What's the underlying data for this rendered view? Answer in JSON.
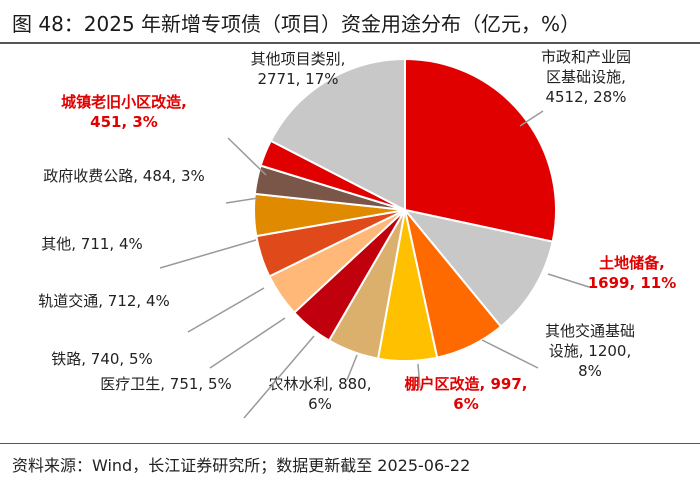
{
  "title": "图 48：2025 年新增专项债（项目）资金用途分布（亿元，%）",
  "source": "资料来源：Wind，长江证券研究所；数据更新截至 2025-06-22",
  "chart_data": {
    "type": "pie",
    "title": "图 48：2025 年新增专项债（项目）资金用途分布（亿元，%）",
    "unit": "亿元，%",
    "slices": [
      {
        "name": "市政和产业园区基础设施",
        "value": 4512,
        "pct": "28%",
        "color": "#e00000",
        "highlight": false,
        "label_lines": [
          "市政和产业园",
          "区基础设施,",
          "4512, 28%"
        ]
      },
      {
        "name": "土地储备",
        "value": 1699,
        "pct": "11%",
        "color": "#c8c8c8",
        "highlight": true,
        "label_lines": [
          "土地储备,",
          "1699, 11%"
        ]
      },
      {
        "name": "其他交通基础设施",
        "value": 1200,
        "pct": "8%",
        "color": "#ff6a00",
        "highlight": false,
        "label_lines": [
          "其他交通基础",
          "设施, 1200,",
          "8%"
        ]
      },
      {
        "name": "棚户区改造",
        "value": 997,
        "pct": "6%",
        "color": "#ffc000",
        "highlight": true,
        "label_lines": [
          "棚户区改造, 997,",
          "6%"
        ]
      },
      {
        "name": "农林水利",
        "value": 880,
        "pct": "6%",
        "color": "#dbb06c",
        "highlight": false,
        "label_lines": [
          "农林水利, 880,",
          "6%"
        ]
      },
      {
        "name": "医疗卫生",
        "value": 751,
        "pct": "5%",
        "color": "#c0000c",
        "highlight": false,
        "label_lines": [
          "医疗卫生, 751, 5%"
        ]
      },
      {
        "name": "铁路",
        "value": 740,
        "pct": "5%",
        "color": "#ffb878",
        "highlight": false,
        "label_lines": [
          "铁路, 740, 5%"
        ]
      },
      {
        "name": "轨道交通",
        "value": 712,
        "pct": "4%",
        "color": "#e04a1a",
        "highlight": false,
        "label_lines": [
          "轨道交通, 712, 4%"
        ]
      },
      {
        "name": "其他",
        "value": 711,
        "pct": "4%",
        "color": "#e08a00",
        "highlight": false,
        "label_lines": [
          "其他, 711, 4%"
        ]
      },
      {
        "name": "政府收费公路",
        "value": 484,
        "pct": "3%",
        "color": "#7a5648",
        "highlight": false,
        "label_lines": [
          "政府收费公路, 484, 3%"
        ]
      },
      {
        "name": "城镇老旧小区改造",
        "value": 451,
        "pct": "3%",
        "color": "#e00000",
        "highlight": true,
        "label_lines": [
          "城镇老旧小区改造,",
          "451, 3%"
        ]
      },
      {
        "name": "其他项目类别",
        "value": 2771,
        "pct": "17%",
        "color": "#c8c8c8",
        "highlight": false,
        "label_lines": [
          "其他项目类别,",
          "2771, 17%"
        ]
      }
    ]
  }
}
